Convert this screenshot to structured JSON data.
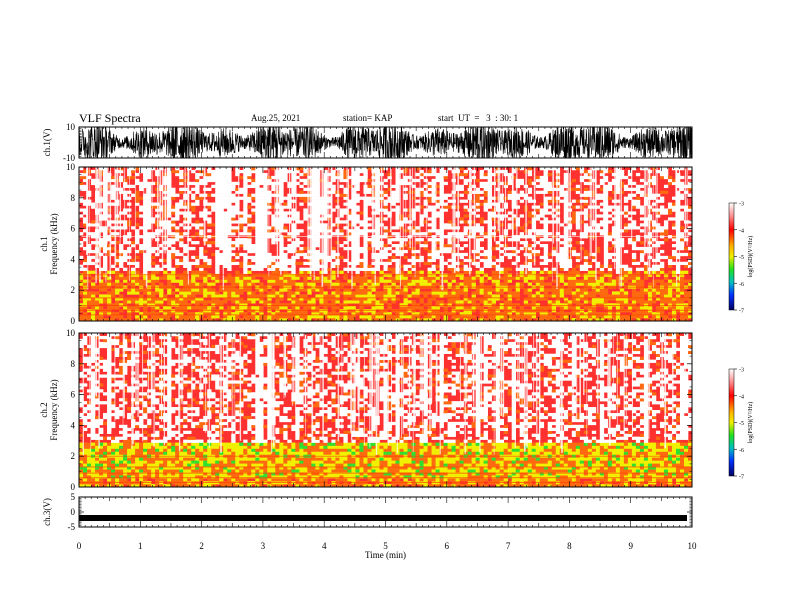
{
  "header": {
    "title": "VLF Spectra",
    "date": "Aug.25, 2021",
    "station": "station= KAP",
    "start_ut": "start  UT  =   3  : 30: 1"
  },
  "chart_data": [
    {
      "type": "line",
      "panel": "ch1-waveform",
      "ylabel": "ch.1(V)",
      "ylim": [
        -10,
        10
      ],
      "yticks": [
        "10",
        "-10"
      ],
      "xlim": [
        0,
        10
      ],
      "description_series": "dense black waveform oscillating across the full -10 to 10 V range"
    },
    {
      "type": "heatmap",
      "panel": "ch1-spectrogram",
      "ylabel": "ch.1\nFrequency (kHz)",
      "ylabel_line1": "ch.1",
      "ylabel_line2": "Frequency (kHz)",
      "ylim": [
        0,
        10
      ],
      "yticks": [
        "0",
        "2",
        "4",
        "6",
        "8",
        "10"
      ],
      "xlim": [
        0,
        10
      ],
      "colorbar": {
        "label": "log(PSD)(V²/Hz)",
        "range": [
          -7,
          -3
        ],
        "ticks": [
          "-3",
          "-4",
          "-5",
          "-6",
          "-7"
        ]
      }
    },
    {
      "type": "heatmap",
      "panel": "ch2-spectrogram",
      "ylabel_line1": "ch.2",
      "ylabel_line2": "Frequency (kHz)",
      "ylim": [
        0,
        10
      ],
      "yticks": [
        "0",
        "2",
        "4",
        "6",
        "8",
        "10"
      ],
      "xlim": [
        0,
        10
      ],
      "colorbar": {
        "label": "log(PSD)(V²/Hz)",
        "range": [
          -7,
          -3
        ],
        "ticks": [
          "-3",
          "-4",
          "-5",
          "-6",
          "-7"
        ]
      }
    },
    {
      "type": "line",
      "panel": "ch3-waveform",
      "ylabel": "ch.3(V)",
      "ylim": [
        -5,
        5
      ],
      "yticks": [
        "5",
        "0",
        "-5"
      ],
      "xlim": [
        0,
        10
      ],
      "xlabel": "Time (min)",
      "xticks": [
        "0",
        "1",
        "2",
        "3",
        "4",
        "5",
        "6",
        "7",
        "8",
        "9",
        "10"
      ],
      "level": -2
    }
  ],
  "colors": {
    "axis": "#000000",
    "spectrogram_high": "#ff2020",
    "spectrogram_mid": "#f0f000",
    "spectrogram_low": "#20e020",
    "waveform": "#000000"
  }
}
